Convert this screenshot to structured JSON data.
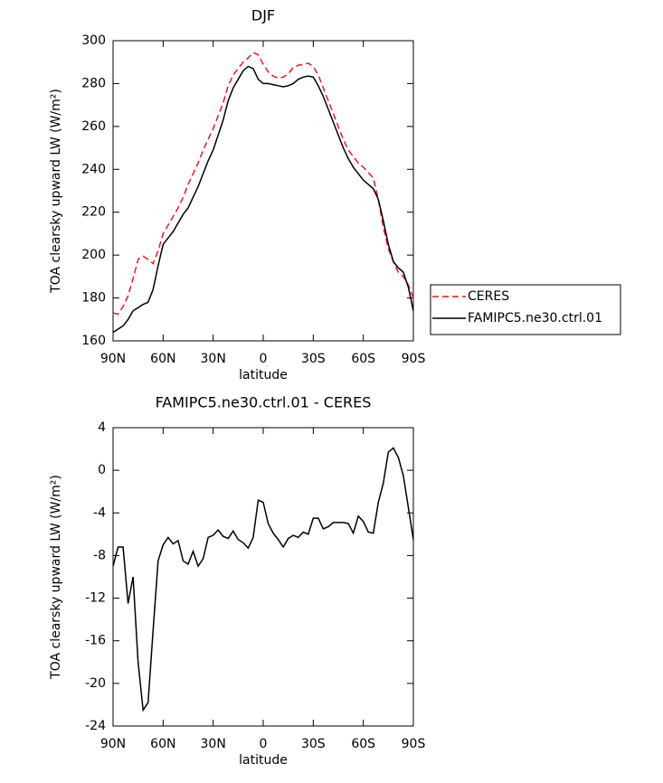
{
  "chart_data": [
    {
      "type": "line",
      "title": "DJF",
      "x_label": "latitude",
      "y_label": "TOA clearsky upward LW (W/m²)",
      "x": [
        90,
        87,
        84,
        81,
        78,
        75,
        72,
        69,
        66,
        63,
        60,
        57,
        54,
        51,
        48,
        45,
        42,
        39,
        36,
        33,
        30,
        27,
        24,
        21,
        18,
        15,
        12,
        9,
        6,
        3,
        0,
        -3,
        -6,
        -9,
        -12,
        -15,
        -18,
        -21,
        -24,
        -27,
        -30,
        -33,
        -36,
        -39,
        -42,
        -45,
        -48,
        -51,
        -54,
        -57,
        -60,
        -63,
        -66,
        -69,
        -72,
        -75,
        -78,
        -81,
        -84,
        -87,
        -90
      ],
      "xlim": [
        90,
        -90
      ],
      "xticks": [
        {
          "value": 90,
          "label": "90N"
        },
        {
          "value": 60,
          "label": "60N"
        },
        {
          "value": 30,
          "label": "30N"
        },
        0,
        {
          "value": -30,
          "label": "30S"
        },
        {
          "value": -60,
          "label": "60S"
        },
        {
          "value": -90,
          "label": "90S"
        }
      ],
      "ylim": [
        160,
        300
      ],
      "yticks": [
        160,
        180,
        200,
        220,
        240,
        260,
        280,
        300
      ],
      "legend": "right",
      "series": [
        {
          "name": "CERES",
          "color": "#e8191e",
          "dashed": true,
          "values": [
            173,
            172.5,
            176,
            181,
            189,
            198,
            199.5,
            198,
            196,
            202,
            210,
            214,
            218,
            222,
            227,
            233,
            238,
            243,
            249,
            254,
            259,
            265,
            271,
            279,
            284,
            287,
            290,
            292,
            294.5,
            293.5,
            289,
            285.5,
            283.5,
            282.5,
            283,
            284.5,
            287.5,
            288.5,
            289,
            289.5,
            288,
            284,
            278,
            272,
            266,
            260,
            254,
            249,
            246,
            243,
            241,
            238.5,
            236,
            226,
            213,
            203,
            197,
            192,
            190,
            186,
            180
          ]
        },
        {
          "name": "FAMIPC5.ne30.ctrl.01",
          "color": "#000000",
          "dashed": false,
          "values": [
            164,
            165.5,
            167,
            170,
            174,
            175.5,
            177,
            178,
            184,
            195,
            205,
            208,
            211,
            215,
            219,
            222,
            227,
            232,
            238,
            244,
            249,
            256,
            263,
            272,
            278,
            282,
            286,
            288,
            287,
            282,
            280,
            280,
            279.5,
            279,
            278.5,
            279,
            280,
            282,
            283,
            283.5,
            283,
            279,
            274,
            268,
            262,
            256,
            250,
            245,
            241,
            238,
            235,
            233,
            231,
            226,
            216,
            205,
            197,
            194,
            192,
            185,
            174
          ]
        }
      ]
    },
    {
      "type": "line",
      "title": "FAMIPC5.ne30.ctrl.01 - CERES",
      "x_label": "latitude",
      "y_label": "TOA clearsky upward LW (W/m²)",
      "x": [
        90,
        87,
        84,
        81,
        78,
        75,
        72,
        69,
        66,
        63,
        60,
        57,
        54,
        51,
        48,
        45,
        42,
        39,
        36,
        33,
        30,
        27,
        24,
        21,
        18,
        15,
        12,
        9,
        6,
        3,
        0,
        -3,
        -6,
        -9,
        -12,
        -15,
        -18,
        -21,
        -24,
        -27,
        -30,
        -33,
        -36,
        -39,
        -42,
        -45,
        -48,
        -51,
        -54,
        -57,
        -60,
        -63,
        -66,
        -69,
        -72,
        -75,
        -78,
        -81,
        -84,
        -87,
        -90
      ],
      "xlim": [
        90,
        -90
      ],
      "xticks": [
        {
          "value": 90,
          "label": "90N"
        },
        {
          "value": 60,
          "label": "60N"
        },
        {
          "value": 30,
          "label": "30N"
        },
        0,
        {
          "value": -30,
          "label": "30S"
        },
        {
          "value": -60,
          "label": "60S"
        },
        {
          "value": -90,
          "label": "90S"
        }
      ],
      "ylim": [
        -24,
        4
      ],
      "yticks": [
        -24,
        -20,
        -16,
        -12,
        -8,
        -4,
        0,
        4
      ],
      "color": "#000000",
      "values": [
        -9,
        -7.2,
        -7.2,
        -12.5,
        -10,
        -18,
        -22.5,
        -21.8,
        -15,
        -8.5,
        -7,
        -6.3,
        -6.9,
        -6.6,
        -8.5,
        -8.8,
        -7.6,
        -9,
        -8.3,
        -6.3,
        -6.1,
        -5.6,
        -6.2,
        -6.4,
        -5.7,
        -6.5,
        -6.8,
        -7.3,
        -6.3,
        -2.8,
        -3,
        -5,
        -5.9,
        -6.5,
        -7.2,
        -6.4,
        -6.1,
        -6.3,
        -5.8,
        -6,
        -4.5,
        -4.5,
        -5.5,
        -5.3,
        -4.9,
        -4.9,
        -4.9,
        -5,
        -5.9,
        -4.3,
        -4.8,
        -5.8,
        -5.9,
        -3,
        -1.2,
        1.7,
        2.1,
        1.2,
        -0.5,
        -3.5,
        -6.5
      ]
    }
  ]
}
